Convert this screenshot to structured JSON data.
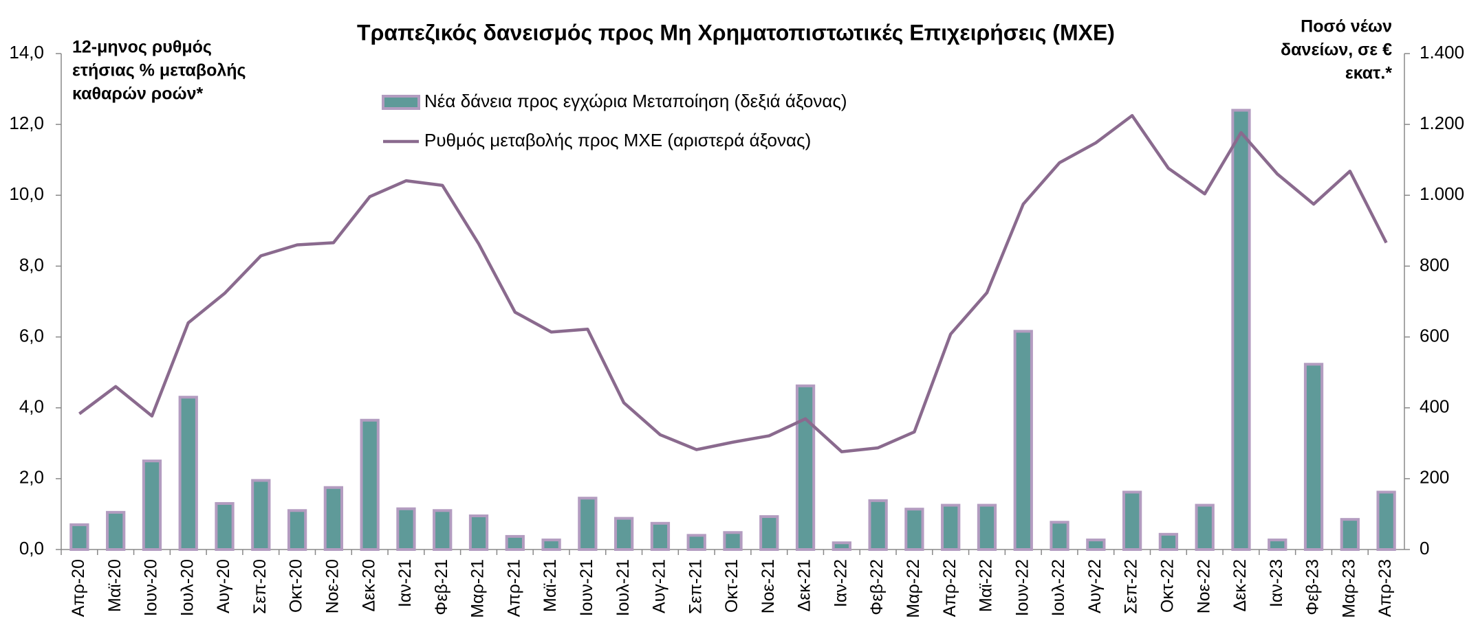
{
  "chart_data": {
    "type": "bar_line",
    "title": "Τραπεζικός δανεισμός προς Μη Χρηματοπιστωτικές Επιχειρήσεις (ΜΧΕ)",
    "ylabel": [
      "12-μηνος ρυθμός",
      "ετήσιας % μεταβολής",
      "καθαρών ροών*"
    ],
    "y2label": [
      "Ποσό νέων",
      "δανείων, σε €",
      "εκατ.*"
    ],
    "categories": [
      "Απρ-20",
      "Μαϊ-20",
      "Ιουν-20",
      "Ιουλ-20",
      "Αυγ-20",
      "Σεπ-20",
      "Οκτ-20",
      "Νοε-20",
      "Δεκ-20",
      "Ιαν-21",
      "Φεβ-21",
      "Μαρ-21",
      "Απρ-21",
      "Μαϊ-21",
      "Ιουν-21",
      "Ιουλ-21",
      "Αυγ-21",
      "Σεπ-21",
      "Οκτ-21",
      "Νοε-21",
      "Δεκ-21",
      "Ιαν-22",
      "Φεβ-22",
      "Μαρ-22",
      "Απρ-22",
      "Μαϊ-22",
      "Ιουν-22",
      "Ιουλ-22",
      "Αυγ-22",
      "Σεπ-22",
      "Οκτ-22",
      "Νοε-22",
      "Δεκ-22",
      "Ιαν-23",
      "Φεβ-23",
      "Μαρ-23",
      "Απρ-23"
    ],
    "series": [
      {
        "name": "Νέα δάνεια προς εγχώρια Μεταποίηση (δεξιά άξονας)",
        "kind": "bar",
        "axis": "y2",
        "color": "#5f9a99",
        "edge_color": "#b39cc0",
        "values": [
          70,
          105,
          250,
          430,
          130,
          195,
          110,
          175,
          365,
          115,
          110,
          95,
          37,
          27,
          145,
          88,
          74,
          40,
          48,
          93,
          462,
          19,
          138,
          114,
          125,
          125,
          616,
          77,
          27,
          162,
          43,
          125,
          1240,
          27,
          523,
          85,
          162
        ]
      },
      {
        "name": "Ρυθμός μεταβολής προς ΜΧΕ (αριστερά άξονας)",
        "kind": "line",
        "axis": "y",
        "color": "#8a6a8e",
        "values": [
          3.83,
          4.6,
          3.77,
          6.4,
          7.23,
          8.29,
          8.6,
          8.66,
          9.96,
          10.41,
          10.28,
          8.63,
          6.7,
          6.14,
          6.22,
          4.14,
          3.24,
          2.82,
          3.03,
          3.21,
          3.69,
          2.76,
          2.87,
          3.32,
          6.08,
          7.25,
          9.75,
          10.92,
          11.48,
          12.25,
          10.76,
          10.04,
          11.77,
          10.6,
          9.75,
          10.68,
          8.66
        ]
      }
    ],
    "ylim": [
      0,
      14
    ],
    "yticks": [
      {
        "value": 0,
        "label": "0,0"
      },
      {
        "value": 2,
        "label": "2,0"
      },
      {
        "value": 4,
        "label": "4,0"
      },
      {
        "value": 6,
        "label": "6,0"
      },
      {
        "value": 8,
        "label": "8,0"
      },
      {
        "value": 10,
        "label": "10,0"
      },
      {
        "value": 12,
        "label": "12,0"
      },
      {
        "value": 14,
        "label": "14,0"
      }
    ],
    "y2lim": [
      0,
      1400
    ],
    "y2ticks": [
      0,
      200,
      400,
      600,
      800,
      {
        "value": 1000,
        "label": "1.000"
      },
      {
        "value": 1200,
        "label": "1.200"
      },
      {
        "value": 1400,
        "label": "1.400"
      }
    ],
    "grid": false
  }
}
